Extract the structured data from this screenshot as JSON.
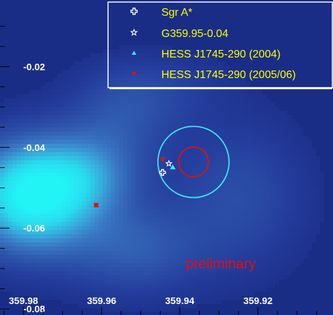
{
  "chart_data": {
    "type": "heatmap",
    "title": "",
    "xlabel": "",
    "ylabel": "",
    "xlim": [
      359.986,
      359.905
    ],
    "ylim": [
      -0.0815,
      -0.0035
    ],
    "x_ticks": [
      {
        "value": 359.98,
        "label": "359.98"
      },
      {
        "value": 359.96,
        "label": "359.96"
      },
      {
        "value": 359.94,
        "label": "359.94"
      },
      {
        "value": 359.92,
        "label": "359.92"
      }
    ],
    "y_ticks": [
      {
        "value": -0.02,
        "label": "-0.02"
      },
      {
        "value": -0.04,
        "label": "-0.04"
      },
      {
        "value": -0.06,
        "label": "-0.06"
      },
      {
        "value": -0.08,
        "label": "-0.08"
      }
    ],
    "colors": {
      "background": "#1a2d86",
      "low": "#243c9c",
      "mid": "#3c7cc4",
      "high": "#22f0f4",
      "accent_red": "#e01010",
      "cyan": "#3ee6f2",
      "legend_text": "#ffff00"
    },
    "intensity_blobs": [
      {
        "x": 359.978,
        "y": -0.052,
        "sx": 0.011,
        "sy": 0.0095,
        "amp": 1.0
      },
      {
        "x": 359.963,
        "y": -0.047,
        "sx": 0.009,
        "sy": 0.007,
        "amp": 0.35
      },
      {
        "x": 359.952,
        "y": -0.065,
        "sx": 0.012,
        "sy": 0.008,
        "amp": 0.3
      },
      {
        "x": 359.955,
        "y": -0.033,
        "sx": 0.01,
        "sy": 0.008,
        "amp": 0.22
      },
      {
        "x": 359.925,
        "y": -0.052,
        "sx": 0.012,
        "sy": 0.013,
        "amp": 0.22
      },
      {
        "x": 359.945,
        "y": -0.025,
        "sx": 0.012,
        "sy": 0.006,
        "amp": 0.12
      }
    ],
    "circles": [
      {
        "name": "hess-2004-error-circle",
        "x": 359.9365,
        "y": -0.0436,
        "r": 0.0091,
        "color": "#3ee6f2"
      },
      {
        "name": "hess-2005-error-circle",
        "x": 359.9365,
        "y": -0.0436,
        "r": 0.0038,
        "color": "#e01010"
      }
    ],
    "series": [
      {
        "name": "Sgr A*",
        "marker": "cross",
        "color": "#ffffff",
        "points": [
          {
            "x": 359.9444,
            "y": -0.0462
          }
        ]
      },
      {
        "name": "G359.95-0.04",
        "marker": "star",
        "color": "#ffffff",
        "points": [
          {
            "x": 359.9428,
            "y": -0.044
          }
        ]
      },
      {
        "name": "HESS J1745-290 (2004)",
        "marker": "triangle-up",
        "color": "#3ee6f2",
        "points": [
          {
            "x": 359.9418,
            "y": -0.0449
          }
        ]
      },
      {
        "name": "HESS J1745-290 (2005/06)",
        "marker": "triangle-down",
        "color": "#e01010",
        "points": [
          {
            "x": 359.9444,
            "y": -0.043
          }
        ]
      }
    ],
    "extra_markers": [
      {
        "marker": "square",
        "color": "#e01010",
        "x": 359.9614,
        "y": -0.0543
      }
    ],
    "annotations": [
      {
        "text": "preliminary",
        "x": 359.9385,
        "y": -0.07,
        "color": "#e01010"
      }
    ],
    "legend_position": "top-right",
    "grid": false
  }
}
